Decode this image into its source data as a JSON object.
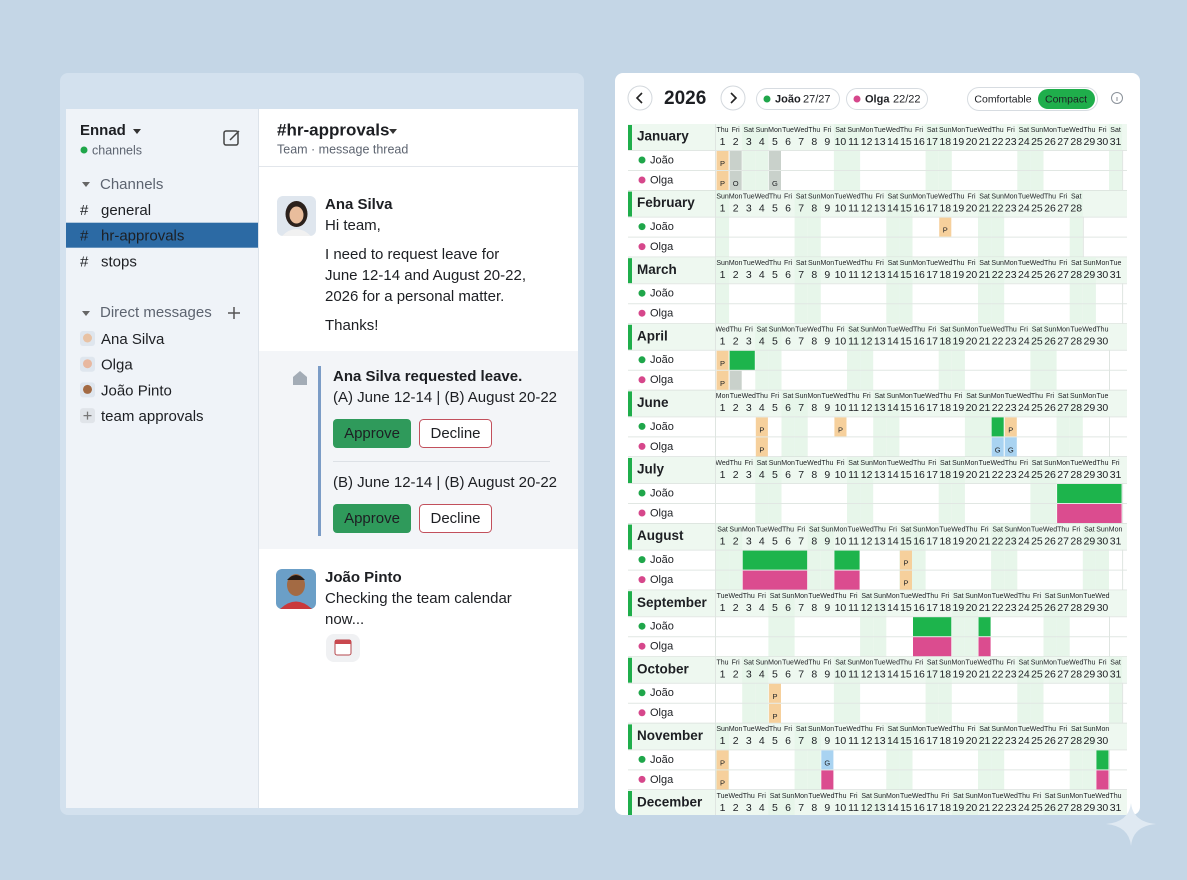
{
  "sidebar": {
    "workspace": "Ennad",
    "status": "channels",
    "channels_heading": "Channels",
    "channel_prefix": "#",
    "channels": [
      "general",
      "hr-approvals",
      "stops"
    ],
    "selected_channel": 1,
    "dm_heading": "Direct messages",
    "dms": [
      "Ana Silva",
      "Olga",
      "João Pinto",
      "team approvals"
    ]
  },
  "channel": {
    "name": "#hr-approvals",
    "subtitle": "Team · message thread"
  },
  "messages": [
    {
      "author": "Ana Silva",
      "lines": [
        "Hi team,",
        "I need to request leave for",
        "June 12-14 and August 20-22,",
        "2026 for a personal matter.",
        "Thanks!"
      ]
    },
    {
      "author": "João Pinto",
      "lines": [
        "Checking the team calendar",
        "now..."
      ]
    }
  ],
  "approval": {
    "title": "Ana Silva requested leave.",
    "requests": [
      {
        "text": "(A) June 12-14 | (B) August 20-22",
        "approve": "Approve",
        "decline": "Decline"
      },
      {
        "text": "(B) June 12-14 | (B) August 20-22",
        "approve": "Approve",
        "decline": "Decline"
      }
    ]
  },
  "calendar": {
    "year": 2026,
    "people": [
      {
        "name": "João",
        "count": "27/27",
        "color": "#1fa64a"
      },
      {
        "name": "Olga",
        "count": "22/22",
        "color": "#d6478b"
      }
    ],
    "density_options": [
      "Comfortable",
      "Compact"
    ],
    "density": 1,
    "weekday_names": [
      "Sun",
      "Mon",
      "Tue",
      "Wed",
      "Thu",
      "Fri",
      "Sat"
    ],
    "weekend": [
      0,
      6
    ],
    "day_numbers": [
      1,
      2,
      3,
      4,
      5,
      6,
      7,
      8,
      9,
      10,
      11,
      12,
      13,
      14,
      15,
      16,
      17,
      18,
      19,
      20,
      21,
      22,
      23,
      24,
      25,
      26,
      27,
      28,
      29,
      30,
      31
    ],
    "styles": {
      "pending": "#f6d09c",
      "neutral": "#c9d1cb",
      "approved": "#1db44c",
      "declined": "#db4c8f",
      "info": "#a9d3f1"
    },
    "months": [
      {
        "name": "January",
        "days": 31,
        "first_weekday": 4,
        "events": [
          {
            "row": 0,
            "start": 1,
            "end": 1,
            "style": "pending",
            "label": "P"
          },
          {
            "row": 0,
            "start": 2,
            "end": 2,
            "style": "neutral"
          },
          {
            "row": 0,
            "start": 5,
            "end": 5,
            "style": "neutral"
          },
          {
            "row": 1,
            "start": 1,
            "end": 1,
            "style": "pending",
            "label": "P"
          },
          {
            "row": 1,
            "start": 2,
            "end": 2,
            "style": "neutral",
            "label": "O"
          },
          {
            "row": 1,
            "start": 5,
            "end": 5,
            "style": "neutral",
            "label": "G"
          }
        ]
      },
      {
        "name": "February",
        "days": 28,
        "first_weekday": 0,
        "events": [
          {
            "row": 0,
            "start": 18,
            "end": 18,
            "style": "pending",
            "label": "P"
          }
        ]
      },
      {
        "name": "March",
        "days": 31,
        "first_weekday": 0,
        "events": []
      },
      {
        "name": "April",
        "days": 30,
        "first_weekday": 3,
        "events": [
          {
            "row": 0,
            "start": 1,
            "end": 1,
            "style": "pending",
            "label": "P"
          },
          {
            "row": 0,
            "start": 2,
            "end": 3,
            "style": "approved"
          },
          {
            "row": 1,
            "start": 1,
            "end": 1,
            "style": "pending",
            "label": "P"
          },
          {
            "row": 1,
            "start": 2,
            "end": 2,
            "style": "neutral"
          }
        ]
      },
      {
        "name": "June",
        "days": 30,
        "first_weekday": 1,
        "events": [
          {
            "row": 0,
            "start": 4,
            "end": 4,
            "style": "pending",
            "label": "P"
          },
          {
            "row": 0,
            "start": 10,
            "end": 10,
            "style": "pending",
            "label": "P"
          },
          {
            "row": 0,
            "start": 22,
            "end": 22,
            "style": "approved"
          },
          {
            "row": 0,
            "start": 23,
            "end": 23,
            "style": "pending",
            "label": "P"
          },
          {
            "row": 1,
            "start": 4,
            "end": 4,
            "style": "pending",
            "label": "P"
          },
          {
            "row": 1,
            "start": 22,
            "end": 22,
            "style": "info",
            "label": "G"
          },
          {
            "row": 1,
            "start": 23,
            "end": 23,
            "style": "info",
            "label": "G"
          }
        ]
      },
      {
        "name": "July",
        "days": 31,
        "first_weekday": 3,
        "events": [
          {
            "row": 0,
            "start": 27,
            "end": 31,
            "style": "approved"
          },
          {
            "row": 1,
            "start": 27,
            "end": 31,
            "style": "declined"
          }
        ]
      },
      {
        "name": "August",
        "days": 31,
        "first_weekday": 6,
        "events": [
          {
            "row": 0,
            "start": 3,
            "end": 7,
            "style": "approved"
          },
          {
            "row": 0,
            "start": 10,
            "end": 11,
            "style": "approved"
          },
          {
            "row": 0,
            "start": 15,
            "end": 15,
            "style": "pending",
            "label": "P"
          },
          {
            "row": 1,
            "start": 3,
            "end": 7,
            "style": "declined"
          },
          {
            "row": 1,
            "start": 10,
            "end": 11,
            "style": "declined"
          },
          {
            "row": 1,
            "start": 15,
            "end": 15,
            "style": "pending",
            "label": "P"
          }
        ]
      },
      {
        "name": "September",
        "days": 30,
        "first_weekday": 2,
        "events": [
          {
            "row": 0,
            "start": 16,
            "end": 18,
            "style": "approved"
          },
          {
            "row": 0,
            "start": 21,
            "end": 21,
            "style": "approved"
          },
          {
            "row": 1,
            "start": 16,
            "end": 18,
            "style": "declined"
          },
          {
            "row": 1,
            "start": 21,
            "end": 21,
            "style": "declined"
          }
        ]
      },
      {
        "name": "October",
        "days": 31,
        "first_weekday": 4,
        "events": [
          {
            "row": 0,
            "start": 5,
            "end": 5,
            "style": "pending",
            "label": "P"
          },
          {
            "row": 1,
            "start": 5,
            "end": 5,
            "style": "pending",
            "label": "P"
          }
        ]
      },
      {
        "name": "November",
        "days": 30,
        "first_weekday": 0,
        "events": [
          {
            "row": 0,
            "start": 1,
            "end": 1,
            "style": "pending",
            "label": "P"
          },
          {
            "row": 0,
            "start": 9,
            "end": 9,
            "style": "info",
            "label": "G"
          },
          {
            "row": 0,
            "start": 30,
            "end": 30,
            "style": "approved"
          },
          {
            "row": 1,
            "start": 1,
            "end": 1,
            "style": "pending",
            "label": "P"
          },
          {
            "row": 1,
            "start": 9,
            "end": 9,
            "style": "declined"
          },
          {
            "row": 1,
            "start": 30,
            "end": 30,
            "style": "declined"
          }
        ]
      },
      {
        "name": "December",
        "days": 31,
        "first_weekday": 2,
        "events": []
      }
    ]
  }
}
